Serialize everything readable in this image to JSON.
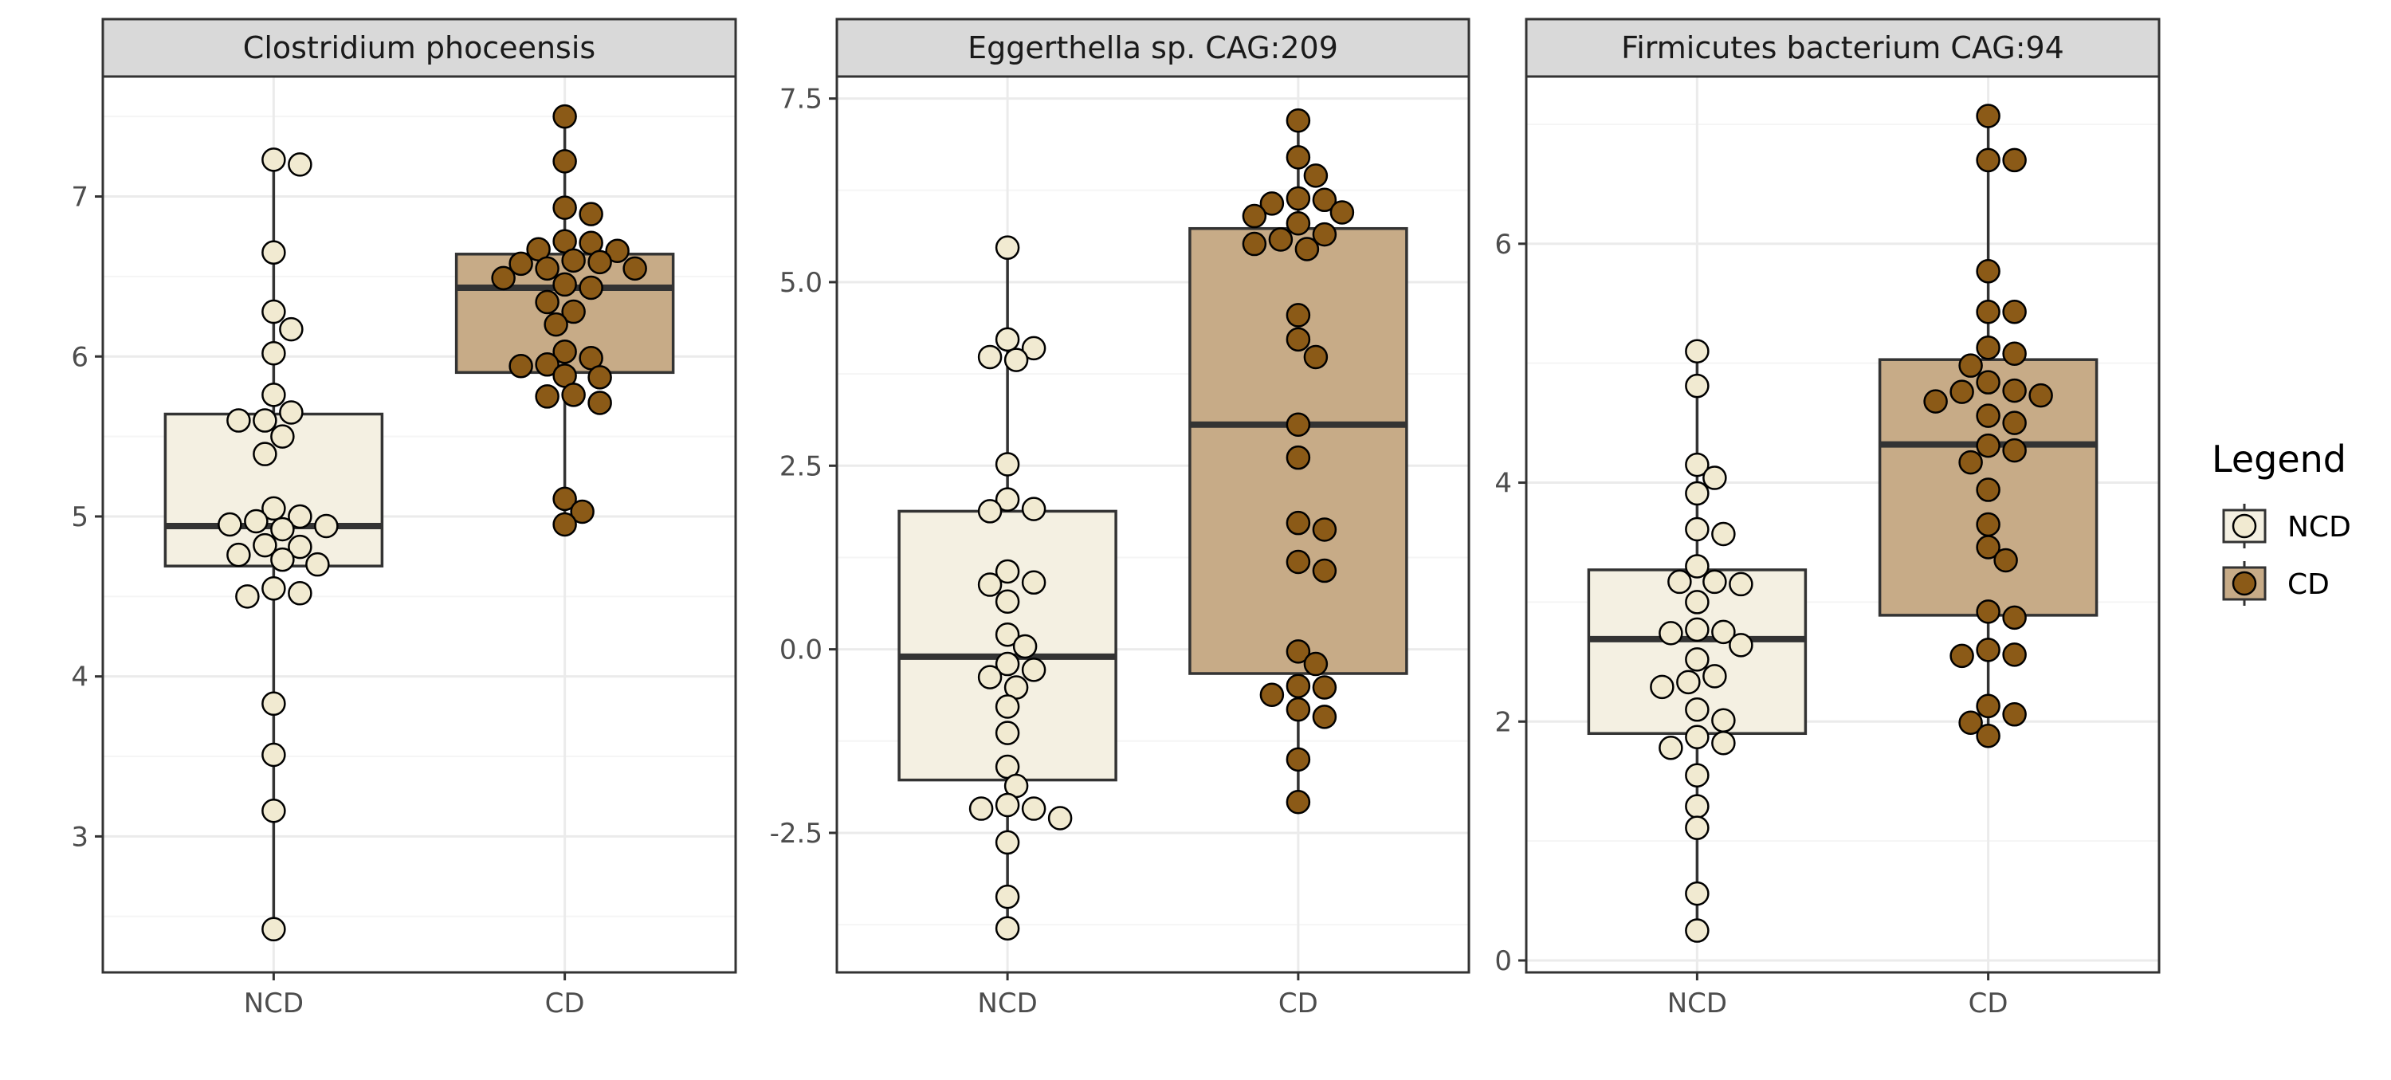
{
  "colors": {
    "panel_background": "#ffffff",
    "panel_border": "#333333",
    "strip_fill": "#d9d9d9",
    "grid_major": "#ebebeb",
    "grid_minor": "#f5f5f5",
    "box_outline": "#333333",
    "point_outline": "#000000"
  },
  "legend": {
    "title": "Legend",
    "items": [
      {
        "label": "NCD",
        "fill": "#f1ead1",
        "box_fill": "#f4f0e2"
      },
      {
        "label": "CD",
        "fill": "#8b5a17",
        "box_fill": "#c7ab87"
      }
    ],
    "position": "right"
  },
  "chart_data": [
    {
      "type": "box",
      "title": "Clostridium phoceensis",
      "categories": [
        "NCD",
        "CD"
      ],
      "ylim": [
        2.15,
        7.75
      ],
      "yticks": [
        3,
        4,
        5,
        6,
        7
      ],
      "ytick_labels": [
        "3",
        "4",
        "5",
        "6",
        "7"
      ],
      "series": [
        {
          "name": "NCD",
          "box": {
            "q1": 4.69,
            "median": 4.94,
            "q3": 5.64,
            "whisker_low": 2.42,
            "whisker_high": 7.23
          },
          "points": [
            7.23,
            7.2,
            6.65,
            6.28,
            6.17,
            6.02,
            5.76,
            5.65,
            5.6,
            5.6,
            5.5,
            5.39,
            5.05,
            5.0,
            4.97,
            4.95,
            4.94,
            4.92,
            4.82,
            4.81,
            4.76,
            4.73,
            4.7,
            4.55,
            4.52,
            4.5,
            3.83,
            3.51,
            3.16,
            2.42
          ]
        },
        {
          "name": "CD",
          "box": {
            "q1": 5.9,
            "median": 6.43,
            "q3": 6.64,
            "whisker_low": 4.95,
            "whisker_high": 7.5
          },
          "points": [
            7.5,
            7.22,
            6.93,
            6.89,
            6.72,
            6.71,
            6.67,
            6.66,
            6.6,
            6.59,
            6.58,
            6.55,
            6.55,
            6.49,
            6.45,
            6.43,
            6.34,
            6.28,
            6.2,
            6.03,
            5.99,
            5.95,
            5.94,
            5.88,
            5.87,
            5.76,
            5.75,
            5.71,
            5.11,
            5.03,
            4.95
          ]
        }
      ]
    },
    {
      "type": "box",
      "title": "Eggerthella sp. CAG:209",
      "categories": [
        "NCD",
        "CD"
      ],
      "ylim": [
        -4.4,
        7.8
      ],
      "yticks": [
        -2.5,
        0.0,
        2.5,
        5.0,
        7.5
      ],
      "ytick_labels": [
        "-2.5",
        "0.0",
        "2.5",
        "5.0",
        "7.5"
      ],
      "series": [
        {
          "name": "NCD",
          "box": {
            "q1": -1.78,
            "median": -0.1,
            "q3": 1.88,
            "whisker_low": -3.8,
            "whisker_high": 5.47
          },
          "points": [
            5.47,
            4.22,
            4.1,
            3.98,
            3.94,
            2.52,
            2.04,
            1.91,
            1.88,
            1.06,
            0.91,
            0.88,
            0.65,
            0.2,
            0.04,
            -0.2,
            -0.28,
            -0.38,
            -0.52,
            -0.78,
            -1.14,
            -1.6,
            -1.86,
            -2.12,
            -2.17,
            -2.17,
            -2.3,
            -2.63,
            -3.37,
            -3.8
          ]
        },
        {
          "name": "CD",
          "box": {
            "q1": -0.33,
            "median": 3.06,
            "q3": 5.73,
            "whisker_low": -2.08,
            "whisker_high": 7.2
          },
          "points": [
            7.2,
            6.7,
            6.45,
            6.14,
            6.12,
            6.07,
            5.95,
            5.9,
            5.8,
            5.65,
            5.58,
            5.52,
            5.45,
            4.55,
            4.22,
            3.98,
            3.06,
            2.61,
            1.72,
            1.63,
            1.19,
            1.07,
            -0.03,
            -0.2,
            -0.5,
            -0.52,
            -0.62,
            -0.82,
            -0.92,
            -1.5,
            -2.08
          ]
        }
      ]
    },
    {
      "type": "box",
      "title": "Firmicutes bacterium CAG:94",
      "categories": [
        "NCD",
        "CD"
      ],
      "ylim": [
        -0.1,
        7.4
      ],
      "yticks": [
        0,
        2,
        4,
        6
      ],
      "ytick_labels": [
        "0",
        "2",
        "4",
        "6"
      ],
      "series": [
        {
          "name": "NCD",
          "box": {
            "q1": 1.9,
            "median": 2.69,
            "q3": 3.27,
            "whisker_low": 0.25,
            "whisker_high": 5.1
          },
          "points": [
            5.1,
            4.81,
            4.15,
            4.04,
            3.91,
            3.61,
            3.57,
            3.3,
            3.17,
            3.17,
            3.15,
            3.0,
            2.77,
            2.75,
            2.74,
            2.64,
            2.52,
            2.38,
            2.33,
            2.29,
            2.1,
            2.01,
            1.87,
            1.82,
            1.78,
            1.55,
            1.29,
            1.11,
            0.56,
            0.25
          ]
        },
        {
          "name": "CD",
          "box": {
            "q1": 2.89,
            "median": 4.32,
            "q3": 5.03,
            "whisker_low": 1.88,
            "whisker_high": 7.07
          },
          "points": [
            7.07,
            6.7,
            6.7,
            5.77,
            5.43,
            5.43,
            5.13,
            5.08,
            4.98,
            4.84,
            4.77,
            4.76,
            4.73,
            4.68,
            4.56,
            4.5,
            4.31,
            4.27,
            4.17,
            3.94,
            3.65,
            3.46,
            3.35,
            2.92,
            2.87,
            2.6,
            2.56,
            2.55,
            2.13,
            2.06,
            1.99,
            1.88
          ]
        }
      ]
    }
  ]
}
